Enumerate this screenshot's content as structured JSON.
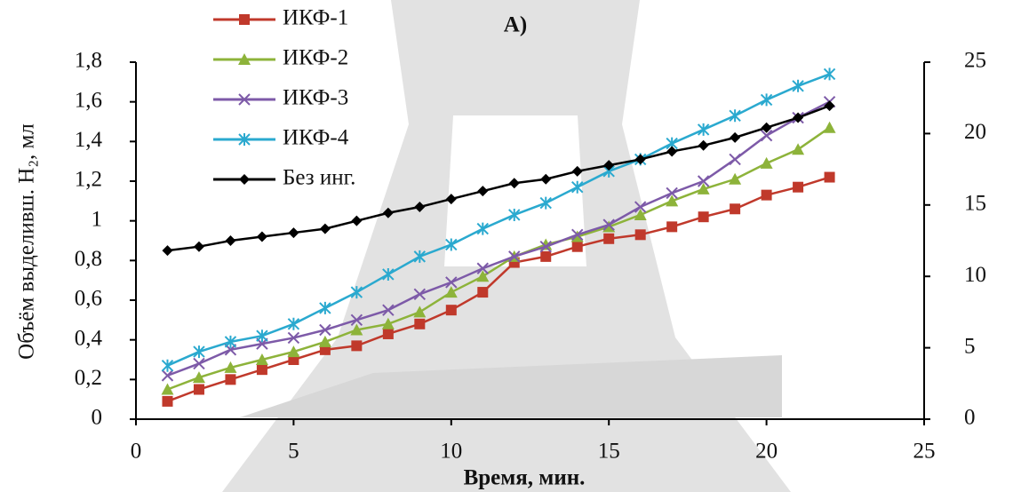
{
  "chart_data": {
    "type": "line",
    "title": "А)",
    "x_label": "Время, мин.",
    "y_label": "Объём выделивш. H₂, мл",
    "x": [
      1,
      2,
      3,
      4,
      5,
      6,
      7,
      8,
      9,
      10,
      11,
      12,
      13,
      14,
      15,
      16,
      17,
      18,
      19,
      20,
      21,
      22
    ],
    "xlim": [
      0,
      25
    ],
    "xticks": [
      0,
      5,
      10,
      15,
      20,
      25
    ],
    "ylim": [
      0,
      1.8
    ],
    "yticks": [
      0,
      {
        "value": 0.2,
        "label": "0,2"
      },
      {
        "value": 0.4,
        "label": "0,4"
      },
      {
        "value": 0.6,
        "label": "0,6"
      },
      {
        "value": 0.8,
        "label": "0,8"
      },
      1,
      {
        "value": 1.2,
        "label": "1,2"
      },
      {
        "value": 1.4,
        "label": "1,4"
      },
      {
        "value": 1.6,
        "label": "1,6"
      },
      {
        "value": 1.8,
        "label": "1,8"
      }
    ],
    "y2lim": [
      0,
      25
    ],
    "y2ticks": [
      0,
      5,
      10,
      15,
      20,
      25
    ],
    "legend": "top-left",
    "series": [
      {
        "name": "ИКФ-1",
        "color": "#c0392b",
        "marker": "square",
        "values": [
          0.09,
          0.15,
          0.2,
          0.25,
          0.3,
          0.35,
          0.37,
          0.43,
          0.48,
          0.55,
          0.64,
          0.79,
          0.82,
          0.87,
          0.91,
          0.93,
          0.97,
          1.02,
          1.06,
          1.13,
          1.17,
          1.22
        ]
      },
      {
        "name": "ИКФ-2",
        "color": "#8db33a",
        "marker": "triangle",
        "values": [
          0.15,
          0.21,
          0.26,
          0.3,
          0.34,
          0.39,
          0.45,
          0.48,
          0.54,
          0.64,
          0.72,
          0.82,
          0.88,
          0.92,
          0.97,
          1.03,
          1.1,
          1.16,
          1.21,
          1.29,
          1.36,
          1.47
        ]
      },
      {
        "name": "ИКФ-3",
        "color": "#7d5aa8",
        "marker": "x",
        "values": [
          0.22,
          0.28,
          0.35,
          0.38,
          0.41,
          0.45,
          0.5,
          0.55,
          0.63,
          0.69,
          0.76,
          0.82,
          0.87,
          0.93,
          0.98,
          1.07,
          1.14,
          1.2,
          1.31,
          1.43,
          1.52,
          1.6
        ]
      },
      {
        "name": "ИКФ-4",
        "color": "#2aa9cf",
        "marker": "asterisk",
        "values": [
          0.27,
          0.34,
          0.39,
          0.42,
          0.48,
          0.56,
          0.64,
          0.73,
          0.82,
          0.88,
          0.96,
          1.03,
          1.09,
          1.17,
          1.25,
          1.31,
          1.39,
          1.46,
          1.53,
          1.61,
          1.68,
          1.74
        ]
      },
      {
        "name": "Без инг.",
        "color": "#000000",
        "marker": "diamond",
        "values": [
          0.85,
          0.87,
          0.9,
          0.92,
          0.94,
          0.96,
          1.0,
          1.04,
          1.07,
          1.11,
          1.15,
          1.19,
          1.21,
          1.25,
          1.28,
          1.31,
          1.35,
          1.38,
          1.42,
          1.47,
          1.52,
          1.58
        ]
      }
    ]
  }
}
